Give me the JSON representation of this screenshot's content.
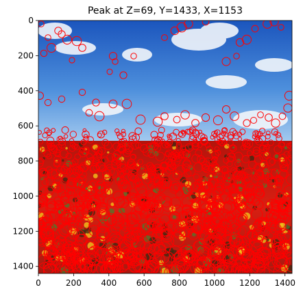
{
  "figure": {
    "title": "Peak at Z=69, Y=1433, X=1153",
    "x_ticks": [
      "0",
      "200",
      "400",
      "600",
      "800",
      "1000",
      "1200",
      "1400"
    ],
    "y_ticks": [
      "0",
      "200",
      "400",
      "600",
      "800",
      "1000",
      "1200",
      "1400"
    ],
    "x_tick_values": [
      0,
      200,
      400,
      600,
      800,
      1000,
      1200,
      1400
    ],
    "y_tick_values": [
      0,
      200,
      400,
      600,
      800,
      1000,
      1200,
      1400
    ],
    "x_range": [
      0,
      1440
    ],
    "y_range": [
      1440,
      0
    ],
    "marker_color": "#ff0000",
    "sky_color_top": "#1f5fc2",
    "sky_color_bottom": "#9cc6ec",
    "field_color": "#c21a0f",
    "scene": "blue sky with clouds above a dense sunflower field covered by red circle markers"
  }
}
